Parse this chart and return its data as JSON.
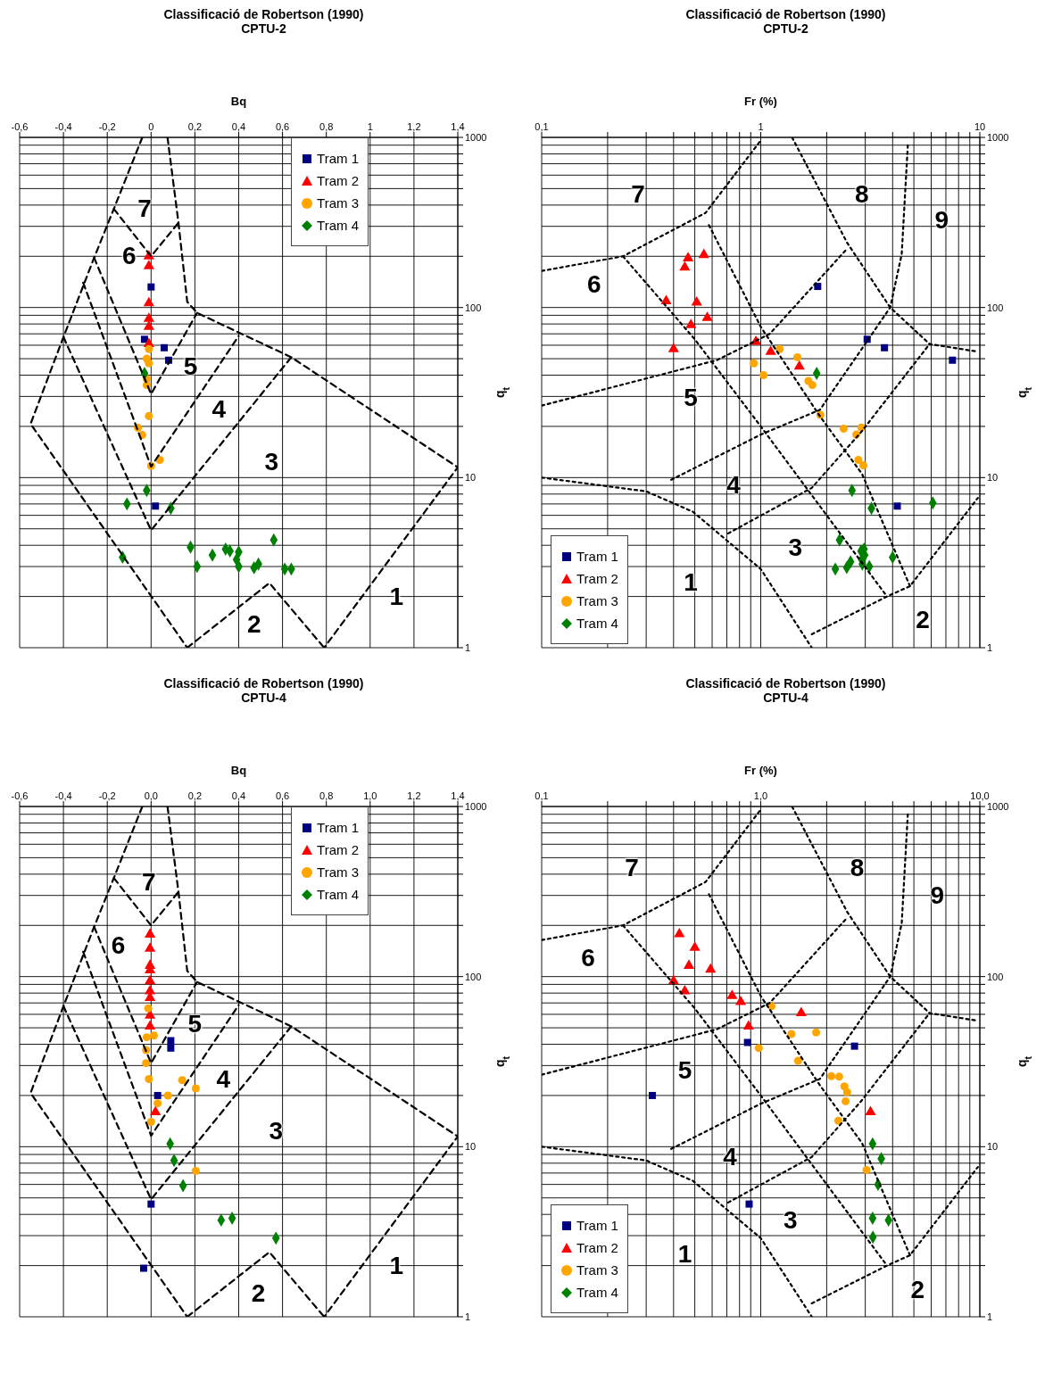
{
  "chart_data": [
    {
      "type": "scatter",
      "title": "Classificació de Robertson (1990)",
      "subtitle": "CPTU-2",
      "xlabel": "Bq",
      "ylabel": "q$_{t}$",
      "log": "y",
      "grid": true,
      "legend": "top right",
      "xlim": [
        -0.6,
        1.4
      ],
      "ylim": [
        1,
        1000
      ],
      "xticks": [
        {
          "value": -0.6,
          "label": "-0,6"
        },
        {
          "value": -0.4,
          "label": "-0,4"
        },
        {
          "value": -0.2,
          "label": "-0,2"
        },
        0,
        {
          "value": 0.2,
          "label": "0,2"
        },
        {
          "value": 0.4,
          "label": "0,4"
        },
        {
          "value": 0.6,
          "label": "0,6"
        },
        {
          "value": 0.8,
          "label": "0,8"
        },
        1,
        {
          "value": 1.2,
          "label": "1,2"
        },
        {
          "value": 1.4,
          "label": "1,4"
        }
      ],
      "yticks": [
        1,
        {
          "value": 2,
          "label": null
        },
        {
          "value": 3,
          "label": null
        },
        {
          "value": 4,
          "label": null
        },
        {
          "value": 5,
          "label": null
        },
        {
          "value": 6,
          "label": null
        },
        {
          "value": 7,
          "label": null
        },
        {
          "value": 8,
          "label": null
        },
        {
          "value": 9,
          "label": null
        },
        10,
        {
          "value": 20,
          "label": null
        },
        {
          "value": 30,
          "label": null
        },
        {
          "value": 40,
          "label": null
        },
        {
          "value": 50,
          "label": null
        },
        {
          "value": 60,
          "label": null
        },
        {
          "value": 70,
          "label": null
        },
        {
          "value": 80,
          "label": null
        },
        {
          "value": 90,
          "label": null
        },
        100,
        {
          "value": 200,
          "label": null
        },
        {
          "value": 300,
          "label": null
        },
        {
          "value": 400,
          "label": null
        },
        {
          "value": 500,
          "label": null
        },
        {
          "value": 600,
          "label": null
        },
        {
          "value": 700,
          "label": null
        },
        {
          "value": 800,
          "label": null
        },
        {
          "value": 900,
          "label": null
        },
        1000
      ],
      "annotations": [
        "7",
        "6",
        "5",
        "4",
        "3",
        "1",
        "2"
      ],
      "series": [
        {
          "name": "Tram 1",
          "color": "#000080",
          "marker": "square",
          "x": [
            0,
            -0.03,
            0.06,
            0.08,
            0.02
          ],
          "values": [
            132,
            65,
            58,
            49,
            6.8
          ]
        },
        {
          "name": "Tram 2",
          "color": "#ff0000",
          "marker": "triangle",
          "x": [
            -0.01,
            -0.01,
            -0.01,
            -0.01,
            -0.01,
            -0.01
          ],
          "values": [
            200,
            175,
            106,
            86,
            77,
            61
          ]
        },
        {
          "name": "Tram 3",
          "color": "#ffa500",
          "marker": "circle",
          "x": [
            -0.01,
            -0.02,
            -0.01,
            -0.02,
            -0.02,
            -0.01,
            -0.06,
            -0.04,
            0.04,
            0
          ],
          "values": [
            57,
            50,
            47,
            38,
            35,
            23,
            19.6,
            17.8,
            12.7,
            11.7
          ]
        },
        {
          "name": "Tram 4",
          "color": "#008000",
          "marker": "diamond",
          "x": [
            -0.03,
            -0.02,
            -0.11,
            0.09,
            -0.13,
            0.18,
            0.21,
            0.28,
            0.34,
            0.36,
            0.4,
            0.39,
            0.4,
            0.47,
            0.49,
            0.56,
            0.61,
            0.64
          ],
          "values": [
            41,
            8.4,
            7,
            6.6,
            3.4,
            3.9,
            3,
            3.5,
            3.8,
            3.7,
            3.65,
            3.3,
            3,
            2.95,
            3.1,
            4.3,
            2.9,
            2.9
          ]
        },
        {
          "type": "line",
          "color": "#000000",
          "line_style": "dashed",
          "marker": "none",
          "x": [
            -0.04,
            -0.17,
            -0.26,
            -0.4,
            -0.55,
            0.165
          ],
          "values": [
            1000,
            380,
            196,
            67,
            20.7,
            1
          ]
        },
        {
          "type": "line",
          "color": "#000000",
          "line_style": "dashed",
          "marker": "none",
          "x": [
            0.075,
            0.125,
            0.165,
            0.21,
            0.64,
            1.4,
            0.79
          ],
          "values": [
            1000,
            315,
            108,
            93,
            51,
            11.5,
            1
          ]
        },
        {
          "type": "line",
          "color": "#000000",
          "line_style": "dashed",
          "marker": "none",
          "x": [
            -0.17,
            0,
            0.125
          ],
          "values": [
            380,
            200,
            315
          ]
        },
        {
          "type": "line",
          "color": "#000000",
          "line_style": "dashed",
          "marker": "none",
          "x": [
            -0.26,
            0,
            0.21
          ],
          "values": [
            196,
            31,
            93
          ]
        },
        {
          "type": "line",
          "color": "#000000",
          "line_style": "dashed",
          "marker": "none",
          "x": [
            -0.31,
            0,
            0.4
          ],
          "values": [
            140,
            11.6,
            68
          ]
        },
        {
          "type": "line",
          "color": "#000000",
          "line_style": "dashed",
          "marker": "none",
          "x": [
            -0.4,
            0,
            0.64
          ],
          "values": [
            67,
            4.9,
            51
          ]
        },
        {
          "type": "line",
          "color": "#000000",
          "line_style": "dashed",
          "marker": "none",
          "x": [
            0.165,
            0.54,
            0.79
          ],
          "values": [
            1,
            2.4,
            1
          ]
        }
      ]
    },
    {
      "type": "scatter",
      "title": "Classificació de Robertson (1990)",
      "subtitle": "CPTU-2",
      "xlabel": "Fr (%)",
      "ylabel": "q$_{t}$",
      "log": "xy",
      "grid": true,
      "legend": "bottom left",
      "xlim": [
        0.1,
        10
      ],
      "ylim": [
        1,
        1000
      ],
      "xticks": [
        {
          "value": 0.1,
          "label": "0,1"
        },
        {
          "value": 0.2,
          "label": null
        },
        {
          "value": 0.3,
          "label": null
        },
        {
          "value": 0.4,
          "label": null
        },
        {
          "value": 0.5,
          "label": null
        },
        {
          "value": 0.6,
          "label": null
        },
        {
          "value": 0.7,
          "label": null
        },
        {
          "value": 0.8,
          "label": null
        },
        {
          "value": 0.9,
          "label": null
        },
        1,
        {
          "value": 2,
          "label": null
        },
        {
          "value": 3,
          "label": null
        },
        {
          "value": 4,
          "label": null
        },
        {
          "value": 5,
          "label": null
        },
        {
          "value": 6,
          "label": null
        },
        {
          "value": 7,
          "label": null
        },
        {
          "value": 8,
          "label": null
        },
        {
          "value": 9,
          "label": null
        },
        10
      ],
      "yticks": [
        1,
        {
          "value": 2,
          "label": null
        },
        {
          "value": 3,
          "label": null
        },
        {
          "value": 4,
          "label": null
        },
        {
          "value": 5,
          "label": null
        },
        {
          "value": 6,
          "label": null
        },
        {
          "value": 7,
          "label": null
        },
        {
          "value": 8,
          "label": null
        },
        {
          "value": 9,
          "label": null
        },
        10,
        {
          "value": 20,
          "label": null
        },
        {
          "value": 30,
          "label": null
        },
        {
          "value": 40,
          "label": null
        },
        {
          "value": 50,
          "label": null
        },
        {
          "value": 60,
          "label": null
        },
        {
          "value": 70,
          "label": null
        },
        {
          "value": 80,
          "label": null
        },
        {
          "value": 90,
          "label": null
        },
        100,
        {
          "value": 200,
          "label": null
        },
        {
          "value": 300,
          "label": null
        },
        {
          "value": 400,
          "label": null
        },
        {
          "value": 500,
          "label": null
        },
        {
          "value": 600,
          "label": null
        },
        {
          "value": 700,
          "label": null
        },
        {
          "value": 800,
          "label": null
        },
        {
          "value": 900,
          "label": null
        },
        1000
      ],
      "annotations": [
        "7",
        "8",
        "9",
        "6",
        "5",
        "4",
        "3",
        "1",
        "2"
      ],
      "series": [
        {
          "name": "Tram 1",
          "color": "#000080",
          "marker": "square",
          "x": [
            1.82,
            3.06,
            3.67,
            7.5,
            4.2
          ],
          "values": [
            133,
            65,
            58,
            49,
            6.8
          ]
        },
        {
          "name": "Tram 2",
          "color": "#ff0000",
          "marker": "triangle",
          "x": [
            0.466,
            0.45,
            0.55,
            0.37,
            0.51,
            0.57,
            0.48,
            0.4,
            0.95,
            1.11,
            1.5
          ],
          "values": [
            195,
            172,
            204,
            109,
            107,
            87,
            79,
            57,
            63,
            55,
            45
          ]
        },
        {
          "name": "Tram 3",
          "color": "#ffa500",
          "marker": "circle",
          "x": [
            1.22,
            0.93,
            1.47,
            1.03,
            1.65,
            1.72,
            1.87,
            2.39,
            2.88,
            2.73,
            2.79,
            2.94
          ],
          "values": [
            57,
            47,
            51,
            40,
            37,
            35,
            23.4,
            19.4,
            19.7,
            17.9,
            12.7,
            11.8
          ]
        },
        {
          "name": "Tram 4",
          "color": "#008000",
          "marker": "diamond",
          "x": [
            1.8,
            2.61,
            3.2,
            6.1,
            2.29,
            2.96,
            2.87,
            2.98,
            2.89,
            4,
            2.19,
            2.47,
            2.57,
            2.91,
            3.13
          ],
          "values": [
            41,
            8.4,
            6.6,
            7.1,
            4.3,
            3.8,
            3.7,
            3.5,
            3.3,
            3.4,
            2.9,
            2.96,
            3.2,
            3.1,
            3
          ]
        },
        {
          "type": "line",
          "color": "#000000",
          "line_style": "dotted",
          "marker": "none",
          "x": [
            0.1,
            0.3,
            0.49,
            1,
            1.71
          ],
          "values": [
            10,
            8.3,
            6.3,
            2.9,
            1
          ]
        },
        {
          "type": "line",
          "color": "#000000",
          "line_style": "dotted",
          "marker": "none",
          "x": [
            1.71,
            3.77,
            4.8,
            9.8
          ],
          "values": [
            1.2,
            2,
            2.3,
            7.6
          ]
        },
        {
          "type": "line",
          "color": "#000000",
          "line_style": "dotted",
          "marker": "none",
          "x": [
            0.235,
            0.5,
            1,
            2,
            3.77
          ],
          "values": [
            200,
            65,
            20,
            6,
            2
          ]
        },
        {
          "type": "line",
          "color": "#000000",
          "line_style": "dotted",
          "marker": "none",
          "x": [
            0.58,
            1,
            1.86,
            2.9,
            4.8
          ],
          "values": [
            305,
            77,
            23,
            10.5,
            2.3
          ]
        },
        {
          "type": "line",
          "color": "#000000",
          "line_style": "dotted",
          "marker": "none",
          "x": [
            1.39,
            2.48,
            3.9,
            5.9,
            9.8
          ],
          "values": [
            1000,
            240,
            100,
            61,
            55
          ]
        },
        {
          "type": "line",
          "color": "#000000",
          "line_style": "dotted",
          "marker": "none",
          "x": [
            0.1,
            0.235,
            0.56,
            1
          ],
          "values": [
            164,
            200,
            360,
            960
          ]
        },
        {
          "type": "line",
          "color": "#000000",
          "line_style": "dotted",
          "marker": "none",
          "x": [
            0.1,
            0.63,
            1.1,
            2.48
          ],
          "values": [
            26.5,
            49,
            70,
            222
          ]
        },
        {
          "type": "line",
          "color": "#000000",
          "line_style": "dotted",
          "marker": "none",
          "x": [
            0.39,
            1,
            1.86,
            3.9,
            4.4,
            4.7
          ],
          "values": [
            9.7,
            17.9,
            25,
            100,
            206,
            940
          ]
        },
        {
          "type": "line",
          "color": "#000000",
          "line_style": "dotted",
          "marker": "none",
          "x": [
            0.71,
            1.71,
            2.9,
            5.9
          ],
          "values": [
            4.7,
            8.7,
            18.8,
            61
          ]
        }
      ]
    },
    {
      "type": "scatter",
      "title": "Classificació de Robertson (1990)",
      "subtitle": "CPTU-4",
      "xlabel": "Bq",
      "ylabel": "q$_{t}$",
      "log": "y",
      "grid": true,
      "legend": "top right",
      "xlim": [
        -0.6,
        1.4
      ],
      "ylim": [
        1,
        1000
      ],
      "xticks": [
        {
          "value": -0.6,
          "label": "-0,6"
        },
        {
          "value": -0.4,
          "label": "-0,4"
        },
        {
          "value": -0.2,
          "label": "-0,2"
        },
        {
          "value": 0,
          "label": "0,0"
        },
        {
          "value": 0.2,
          "label": "0,2"
        },
        {
          "value": 0.4,
          "label": "0,4"
        },
        {
          "value": 0.6,
          "label": "0,6"
        },
        {
          "value": 0.8,
          "label": "0,8"
        },
        {
          "value": 1,
          "label": "1,0"
        },
        {
          "value": 1.2,
          "label": "1,2"
        },
        {
          "value": 1.4,
          "label": "1,4"
        }
      ],
      "yticks": [
        1,
        {
          "value": 2,
          "label": null
        },
        {
          "value": 3,
          "label": null
        },
        {
          "value": 4,
          "label": null
        },
        {
          "value": 5,
          "label": null
        },
        {
          "value": 6,
          "label": null
        },
        {
          "value": 7,
          "label": null
        },
        {
          "value": 8,
          "label": null
        },
        {
          "value": 9,
          "label": null
        },
        10,
        {
          "value": 20,
          "label": null
        },
        {
          "value": 30,
          "label": null
        },
        {
          "value": 40,
          "label": null
        },
        {
          "value": 50,
          "label": null
        },
        {
          "value": 60,
          "label": null
        },
        {
          "value": 70,
          "label": null
        },
        {
          "value": 80,
          "label": null
        },
        {
          "value": 90,
          "label": null
        },
        100,
        {
          "value": 200,
          "label": null
        },
        {
          "value": 300,
          "label": null
        },
        {
          "value": 400,
          "label": null
        },
        {
          "value": 500,
          "label": null
        },
        {
          "value": 600,
          "label": null
        },
        {
          "value": 700,
          "label": null
        },
        {
          "value": 800,
          "label": null
        },
        {
          "value": 900,
          "label": null
        },
        1000
      ],
      "annotations": [
        "7",
        "6",
        "5",
        "4",
        "3",
        "1",
        "2"
      ],
      "series": [
        {
          "name": "Tram 1",
          "color": "#000080",
          "marker": "square",
          "x": [
            0.09,
            0.09,
            0.03,
            0,
            -0.034
          ],
          "values": [
            42,
            38,
            20,
            4.6,
            1.93
          ]
        },
        {
          "name": "Tram 2",
          "color": "#ff0000",
          "marker": "triangle",
          "x": [
            -0.005,
            -0.005,
            -0.005,
            -0.005,
            -0.005,
            -0.005,
            -0.005,
            -0.005,
            -0.005,
            0.02
          ],
          "values": [
            177,
            146,
            116,
            109,
            94,
            82,
            75,
            59,
            51,
            16
          ]
        },
        {
          "name": "Tram 3",
          "color": "#ffa500",
          "marker": "circle",
          "x": [
            -0.013,
            0.013,
            -0.02,
            -0.023,
            -0.023,
            -0.01,
            0.142,
            0.204,
            0.077,
            0.03,
            0,
            0.204
          ],
          "values": [
            65,
            45,
            44,
            37,
            31,
            25,
            24.6,
            22,
            20,
            18,
            14,
            7.2
          ]
        },
        {
          "name": "Tram 4",
          "color": "#008000",
          "marker": "diamond",
          "x": [
            0.087,
            0.105,
            0.146,
            0.32,
            0.37,
            0.57
          ],
          "values": [
            10.4,
            8.3,
            5.9,
            3.7,
            3.8,
            2.9
          ]
        },
        {
          "type": "line",
          "color": "#000000",
          "line_style": "dashed",
          "marker": "none",
          "x": [
            -0.04,
            -0.17,
            -0.26,
            -0.4,
            -0.55,
            0.165
          ],
          "values": [
            1000,
            380,
            196,
            67,
            20.7,
            1
          ]
        },
        {
          "type": "line",
          "color": "#000000",
          "line_style": "dashed",
          "marker": "none",
          "x": [
            0.075,
            0.125,
            0.165,
            0.21,
            0.64,
            1.4,
            0.79
          ],
          "values": [
            1000,
            315,
            108,
            93,
            51,
            11.5,
            1
          ]
        },
        {
          "type": "line",
          "color": "#000000",
          "line_style": "dashed",
          "marker": "none",
          "x": [
            -0.17,
            0,
            0.125
          ],
          "values": [
            380,
            200,
            315
          ]
        },
        {
          "type": "line",
          "color": "#000000",
          "line_style": "dashed",
          "marker": "none",
          "x": [
            -0.26,
            0,
            0.21
          ],
          "values": [
            196,
            31,
            93
          ]
        },
        {
          "type": "line",
          "color": "#000000",
          "line_style": "dashed",
          "marker": "none",
          "x": [
            -0.31,
            0,
            0.4
          ],
          "values": [
            140,
            11.6,
            68
          ]
        },
        {
          "type": "line",
          "color": "#000000",
          "line_style": "dashed",
          "marker": "none",
          "x": [
            -0.4,
            0,
            0.64
          ],
          "values": [
            67,
            4.9,
            51
          ]
        },
        {
          "type": "line",
          "color": "#000000",
          "line_style": "dashed",
          "marker": "none",
          "x": [
            0.165,
            0.54,
            0.79
          ],
          "values": [
            1,
            2.4,
            1
          ]
        }
      ]
    },
    {
      "type": "scatter",
      "title": "Classificació de Robertson (1990)",
      "subtitle": "CPTU-4",
      "xlabel": "Fr (%)",
      "ylabel": "q$_{t}$",
      "log": "xy",
      "grid": true,
      "legend": "bottom left",
      "xlim": [
        0.1,
        10
      ],
      "ylim": [
        1,
        1000
      ],
      "xticks": [
        {
          "value": 0.1,
          "label": "0,1"
        },
        {
          "value": 0.2,
          "label": null
        },
        {
          "value": 0.3,
          "label": null
        },
        {
          "value": 0.4,
          "label": null
        },
        {
          "value": 0.5,
          "label": null
        },
        {
          "value": 0.6,
          "label": null
        },
        {
          "value": 0.7,
          "label": null
        },
        {
          "value": 0.8,
          "label": null
        },
        {
          "value": 0.9,
          "label": null
        },
        {
          "value": 1,
          "label": "1,0"
        },
        {
          "value": 2,
          "label": null
        },
        {
          "value": 3,
          "label": null
        },
        {
          "value": 4,
          "label": null
        },
        {
          "value": 5,
          "label": null
        },
        {
          "value": 6,
          "label": null
        },
        {
          "value": 7,
          "label": null
        },
        {
          "value": 8,
          "label": null
        },
        {
          "value": 9,
          "label": null
        },
        {
          "value": 10,
          "label": "10,0"
        }
      ],
      "yticks": [
        1,
        {
          "value": 2,
          "label": null
        },
        {
          "value": 3,
          "label": null
        },
        {
          "value": 4,
          "label": null
        },
        {
          "value": 5,
          "label": null
        },
        {
          "value": 6,
          "label": null
        },
        {
          "value": 7,
          "label": null
        },
        {
          "value": 8,
          "label": null
        },
        {
          "value": 9,
          "label": null
        },
        10,
        {
          "value": 20,
          "label": null
        },
        {
          "value": 30,
          "label": null
        },
        {
          "value": 40,
          "label": null
        },
        {
          "value": 50,
          "label": null
        },
        {
          "value": 60,
          "label": null
        },
        {
          "value": 70,
          "label": null
        },
        {
          "value": 80,
          "label": null
        },
        {
          "value": 90,
          "label": null
        },
        100,
        {
          "value": 200,
          "label": null
        },
        {
          "value": 300,
          "label": null
        },
        {
          "value": 400,
          "label": null
        },
        {
          "value": 500,
          "label": null
        },
        {
          "value": 600,
          "label": null
        },
        {
          "value": 700,
          "label": null
        },
        {
          "value": 800,
          "label": null
        },
        {
          "value": 900,
          "label": null
        },
        1000
      ],
      "annotations": [
        "7",
        "8",
        "9",
        "6",
        "5",
        "4",
        "3",
        "1",
        "2"
      ],
      "series": [
        {
          "name": "Tram 1",
          "color": "#000080",
          "marker": "square",
          "x": [
            0.87,
            0.32,
            2.68,
            0.885
          ],
          "values": [
            41,
            20,
            39,
            4.6
          ]
        },
        {
          "name": "Tram 2",
          "color": "#ff0000",
          "marker": "triangle",
          "x": [
            0.425,
            0.5,
            0.47,
            0.59,
            0.4,
            0.45,
            0.74,
            0.81,
            1.53,
            0.88,
            3.17
          ],
          "values": [
            178,
            148,
            116,
            110,
            94,
            82,
            77,
            71,
            61,
            51,
            16
          ]
        },
        {
          "name": "Tram 3",
          "color": "#ffa500",
          "marker": "circle",
          "x": [
            1.12,
            1.79,
            1.38,
            0.98,
            1.48,
            2.1,
            2.28,
            2.41,
            2.48,
            2.44,
            2.26,
            3.04
          ],
          "values": [
            67,
            47,
            46,
            38,
            32,
            26,
            25.8,
            22.6,
            20.9,
            18.5,
            14.2,
            7.3
          ]
        },
        {
          "name": "Tram 4",
          "color": "#008000",
          "marker": "diamond",
          "x": [
            3.24,
            3.55,
            3.43,
            3.24,
            3.83,
            3.25
          ],
          "values": [
            10.4,
            8.5,
            6,
            3.8,
            3.7,
            2.94
          ]
        },
        {
          "type": "line",
          "color": "#000000",
          "line_style": "dotted",
          "marker": "none",
          "x": [
            0.1,
            0.3,
            0.49,
            1,
            1.71
          ],
          "values": [
            10,
            8.3,
            6.3,
            2.9,
            1
          ]
        },
        {
          "type": "line",
          "color": "#000000",
          "line_style": "dotted",
          "marker": "none",
          "x": [
            1.71,
            3.77,
            4.8,
            9.8
          ],
          "values": [
            1.2,
            2,
            2.3,
            7.6
          ]
        },
        {
          "type": "line",
          "color": "#000000",
          "line_style": "dotted",
          "marker": "none",
          "x": [
            0.235,
            0.5,
            1,
            2,
            3.77
          ],
          "values": [
            200,
            65,
            20,
            6,
            2
          ]
        },
        {
          "type": "line",
          "color": "#000000",
          "line_style": "dotted",
          "marker": "none",
          "x": [
            0.58,
            1,
            1.86,
            2.9,
            4.8
          ],
          "values": [
            305,
            77,
            23,
            10.5,
            2.3
          ]
        },
        {
          "type": "line",
          "color": "#000000",
          "line_style": "dotted",
          "marker": "none",
          "x": [
            1.39,
            2.48,
            3.9,
            5.9,
            9.8
          ],
          "values": [
            1000,
            240,
            100,
            61,
            55
          ]
        },
        {
          "type": "line",
          "color": "#000000",
          "line_style": "dotted",
          "marker": "none",
          "x": [
            0.1,
            0.235,
            0.56,
            1
          ],
          "values": [
            164,
            200,
            360,
            960
          ]
        },
        {
          "type": "line",
          "color": "#000000",
          "line_style": "dotted",
          "marker": "none",
          "x": [
            0.1,
            0.63,
            1.1,
            2.48
          ],
          "values": [
            26.5,
            49,
            70,
            222
          ]
        },
        {
          "type": "line",
          "color": "#000000",
          "line_style": "dotted",
          "marker": "none",
          "x": [
            0.39,
            1,
            1.86,
            3.9,
            4.4,
            4.7
          ],
          "values": [
            9.7,
            17.9,
            25,
            100,
            206,
            940
          ]
        },
        {
          "type": "line",
          "color": "#000000",
          "line_style": "dotted",
          "marker": "none",
          "x": [
            0.71,
            1.71,
            2.9,
            5.9
          ],
          "values": [
            4.7,
            8.7,
            18.8,
            61
          ]
        }
      ]
    }
  ]
}
